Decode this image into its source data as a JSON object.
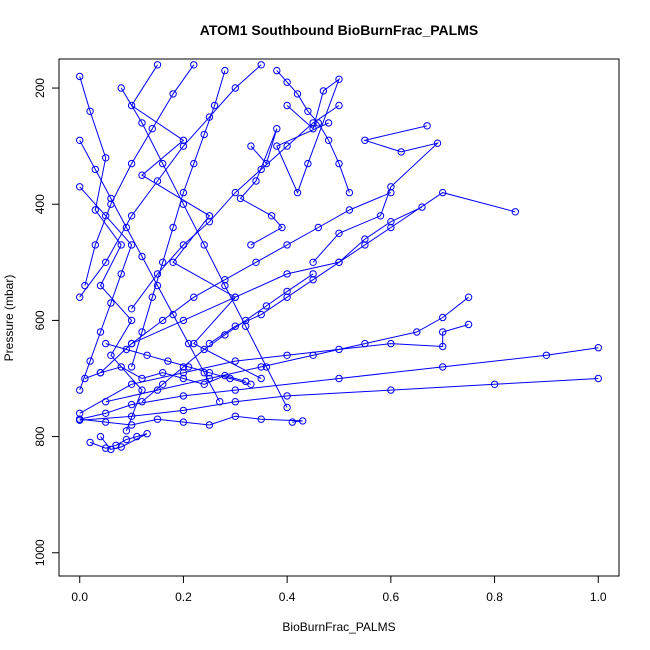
{
  "chart_data": {
    "type": "line",
    "title": "ATOM1 Southbound BioBurnFrac_PALMS",
    "xlabel": "BioBurnFrac_PALMS",
    "ylabel": "Pressure (mbar)",
    "xlim": [
      -0.04,
      1.04
    ],
    "ylim": [
      1040,
      150
    ],
    "y_reversed": true,
    "x_ticks": [
      0.0,
      0.2,
      0.4,
      0.6,
      0.8,
      1.0
    ],
    "x_tick_labels": [
      "0.0",
      "0.2",
      "0.4",
      "0.6",
      "0.8",
      "1.0"
    ],
    "y_ticks": [
      200,
      400,
      600,
      800,
      1000
    ],
    "y_tick_labels": [
      "200",
      "400",
      "600",
      "800",
      "1000"
    ],
    "grid": false,
    "color": "#0000ff",
    "marker": "open-circle",
    "series": [
      {
        "x": [
          0.0,
          0.02,
          0.05,
          0.03,
          0.08,
          0.04,
          0.1,
          0.06,
          0.12,
          0.09
        ],
        "y": [
          180,
          240,
          320,
          410,
          470,
          540,
          600,
          660,
          720,
          790
        ]
      },
      {
        "x": [
          0.15,
          0.1,
          0.2,
          0.12,
          0.25,
          0.18,
          0.3,
          0.22,
          0.35
        ],
        "y": [
          160,
          230,
          290,
          350,
          420,
          500,
          560,
          640,
          700
        ]
      },
      {
        "x": [
          0.4,
          0.45,
          0.47,
          0.5,
          0.44,
          0.42,
          0.38,
          0.48
        ],
        "y": [
          230,
          270,
          205,
          185,
          330,
          380,
          300,
          260
        ]
      },
      {
        "x": [
          0.67,
          0.55,
          0.62,
          0.69,
          0.6,
          0.58,
          0.5,
          0.45
        ],
        "y": [
          265,
          290,
          310,
          295,
          370,
          420,
          450,
          500
        ]
      },
      {
        "x": [
          0.84,
          0.7,
          0.6,
          0.55,
          0.5,
          0.4,
          0.3,
          0.2,
          0.1
        ],
        "y": [
          413,
          380,
          440,
          470,
          500,
          520,
          560,
          600,
          640
        ]
      },
      {
        "x": [
          0.66,
          0.6,
          0.55,
          0.5,
          0.45,
          0.4,
          0.35,
          0.3,
          0.25
        ],
        "y": [
          405,
          430,
          460,
          500,
          530,
          560,
          590,
          610,
          640
        ]
      },
      {
        "x": [
          0.75,
          0.7,
          0.65,
          0.55,
          0.45,
          0.35,
          0.25,
          0.15,
          0.05
        ],
        "y": [
          560,
          595,
          620,
          640,
          660,
          680,
          700,
          720,
          740
        ]
      },
      {
        "x": [
          0.75,
          0.7,
          0.7,
          0.6,
          0.5,
          0.4,
          0.3,
          0.2,
          0.1,
          0.0
        ],
        "y": [
          607,
          620,
          645,
          640,
          650,
          660,
          670,
          690,
          710,
          760
        ]
      },
      {
        "x": [
          1.0,
          0.9,
          0.7,
          0.5,
          0.3,
          0.2,
          0.1,
          0.05,
          0.0
        ],
        "y": [
          647,
          660,
          680,
          700,
          720,
          730,
          745,
          760,
          770
        ]
      },
      {
        "x": [
          1.0,
          0.8,
          0.6,
          0.4,
          0.3,
          0.2,
          0.1,
          0.0
        ],
        "y": [
          700,
          710,
          720,
          730,
          740,
          755,
          765,
          772
        ]
      },
      {
        "x": [
          0.0,
          0.05,
          0.1,
          0.15,
          0.2,
          0.25,
          0.3,
          0.35,
          0.43,
          0.41
        ],
        "y": [
          770,
          775,
          780,
          770,
          775,
          780,
          765,
          770,
          773,
          775
        ]
      },
      {
        "x": [
          0.02,
          0.05,
          0.07,
          0.09,
          0.11,
          0.13,
          0.08,
          0.06,
          0.04
        ],
        "y": [
          810,
          820,
          815,
          805,
          800,
          795,
          818,
          822,
          800
        ]
      },
      {
        "x": [
          0.35,
          0.3,
          0.25,
          0.2,
          0.15,
          0.1,
          0.05,
          0.0
        ],
        "y": [
          160,
          200,
          250,
          300,
          360,
          420,
          500,
          560
        ]
      },
      {
        "x": [
          0.5,
          0.45,
          0.4,
          0.35,
          0.3,
          0.25,
          0.2,
          0.15,
          0.1
        ],
        "y": [
          230,
          260,
          300,
          340,
          380,
          430,
          470,
          520,
          580
        ]
      },
      {
        "x": [
          0.0,
          0.03,
          0.06,
          0.09,
          0.12,
          0.15,
          0.18,
          0.21,
          0.24,
          0.27
        ],
        "y": [
          290,
          340,
          390,
          440,
          490,
          540,
          590,
          640,
          690,
          740
        ]
      },
      {
        "x": [
          0.28,
          0.26,
          0.24,
          0.22,
          0.2,
          0.18,
          0.16,
          0.14,
          0.12,
          0.1
        ],
        "y": [
          170,
          230,
          280,
          330,
          380,
          440,
          500,
          560,
          620,
          680
        ]
      },
      {
        "x": [
          0.01,
          0.04,
          0.08,
          0.12,
          0.16,
          0.2,
          0.24,
          0.28,
          0.32
        ],
        "y": [
          700,
          690,
          680,
          700,
          690,
          700,
          710,
          695,
          705
        ]
      },
      {
        "x": [
          0.45,
          0.4,
          0.36,
          0.32,
          0.28,
          0.24,
          0.2,
          0.16,
          0.12
        ],
        "y": [
          520,
          550,
          575,
          600,
          625,
          650,
          680,
          710,
          740
        ]
      },
      {
        "x": [
          0.08,
          0.12,
          0.16,
          0.2,
          0.24,
          0.28,
          0.32,
          0.36,
          0.4
        ],
        "y": [
          200,
          260,
          330,
          400,
          470,
          540,
          610,
          680,
          750
        ]
      },
      {
        "x": [
          0.6,
          0.52,
          0.46,
          0.4,
          0.34,
          0.28,
          0.22,
          0.16,
          0.1,
          0.04
        ],
        "y": [
          380,
          410,
          440,
          470,
          500,
          530,
          560,
          600,
          640,
          690
        ]
      },
      {
        "x": [
          0.0,
          0.05,
          0.1,
          0.08,
          0.06,
          0.04,
          0.02,
          0.0
        ],
        "y": [
          370,
          420,
          470,
          520,
          570,
          620,
          670,
          720
        ]
      },
      {
        "x": [
          0.22,
          0.18,
          0.14,
          0.1,
          0.06,
          0.03,
          0.01
        ],
        "y": [
          160,
          210,
          270,
          330,
          400,
          470,
          540
        ]
      },
      {
        "x": [
          0.33,
          0.36,
          0.38,
          0.34,
          0.31,
          0.37,
          0.39,
          0.33
        ],
        "y": [
          300,
          330,
          270,
          360,
          390,
          420,
          440,
          470
        ]
      },
      {
        "x": [
          0.52,
          0.5,
          0.48,
          0.46,
          0.44,
          0.42,
          0.4,
          0.38
        ],
        "y": [
          380,
          330,
          290,
          260,
          240,
          210,
          190,
          170
        ]
      },
      {
        "x": [
          0.05,
          0.09,
          0.13,
          0.17,
          0.21,
          0.25,
          0.29,
          0.33
        ],
        "y": [
          640,
          650,
          660,
          670,
          680,
          690,
          700,
          710
        ]
      }
    ]
  }
}
